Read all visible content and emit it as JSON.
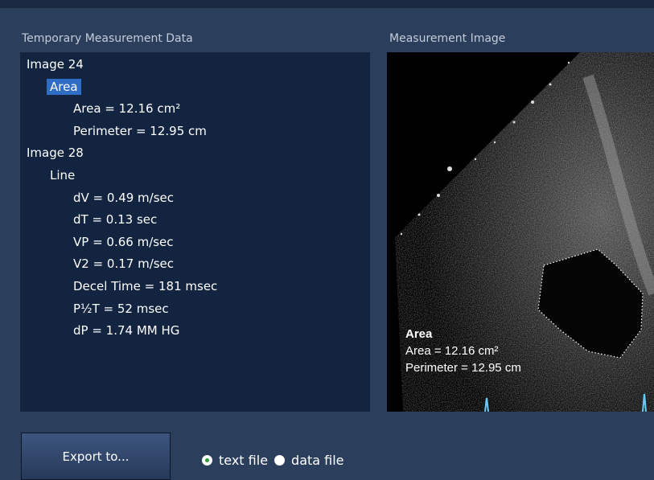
{
  "left_panel": {
    "title": "Temporary Measurement Data",
    "groups": [
      {
        "label": "Image 24",
        "children": [
          {
            "label": "Area",
            "children": [
              "Area = 12.16 cm²",
              "Perimeter = 12.95 cm"
            ]
          }
        ]
      },
      {
        "label": "Image 28",
        "children": [
          {
            "label": "Line",
            "children": [
              "dV = 0.49 m/sec",
              "dT = 0.13 sec",
              "VP = 0.66 m/sec",
              "V2 = 0.17 m/sec",
              "Decel Time = 181 msec",
              "P½T = 52 msec",
              "dP = 1.74 MM HG"
            ]
          }
        ]
      }
    ]
  },
  "image_panel": {
    "title": "Measurement Image",
    "overlay": [
      "Area",
      "Area = 12.16 cm²",
      "Perimeter = 12.95 cm"
    ]
  },
  "export_button": "Export to...",
  "radios": [
    {
      "label": "text file",
      "checked": true
    },
    {
      "label": "data file",
      "checked": false
    }
  ]
}
